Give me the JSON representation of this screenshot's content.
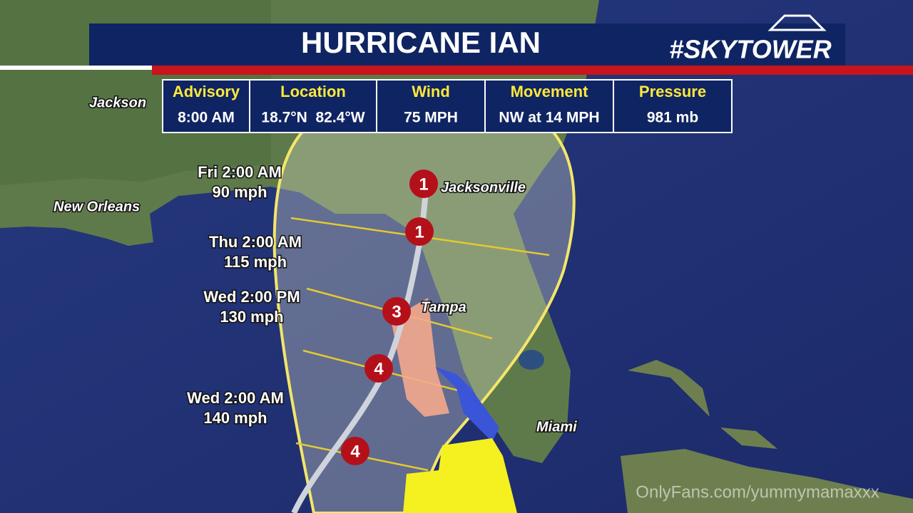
{
  "header": {
    "title": "HURRICANE IAN",
    "logo": "#SKYTOWER"
  },
  "advisory": {
    "columns": [
      {
        "label": "Advisory",
        "value": "8:00 AM"
      },
      {
        "label": "Location",
        "value": "18.7°N  82.4°W"
      },
      {
        "label": "Wind",
        "value": "75 MPH"
      },
      {
        "label": "Movement",
        "value": "NW at 14 MPH"
      },
      {
        "label": "Pressure",
        "value": "981 mb"
      }
    ]
  },
  "cities": [
    "Jackson",
    "New Orleans",
    "Jacksonville",
    "Tampa",
    "Miami"
  ],
  "forecast_points": [
    {
      "time": "Fri 2:00 AM",
      "wind": "90 mph"
    },
    {
      "time": "Thu 2:00 AM",
      "wind": "115 mph"
    },
    {
      "time": "Wed 2:00 PM",
      "wind": "130 mph"
    },
    {
      "time": "Wed 2:00 AM",
      "wind": "140 mph"
    }
  ],
  "storm_icons": [
    "1",
    "1",
    "3",
    "4",
    "4"
  ],
  "watermark": "OnlyFans.com/yummymamaxxx"
}
